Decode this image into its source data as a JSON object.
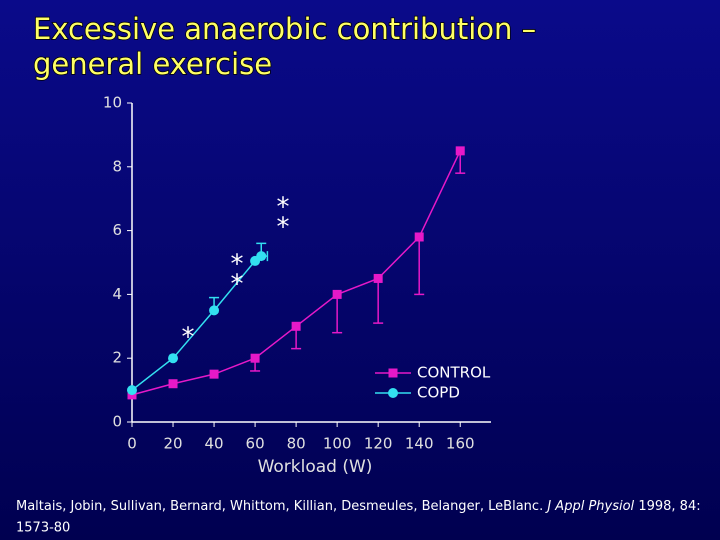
{
  "chart_data": {
    "type": "line",
    "title_lines": [
      "Excessive anaerobic contribution –",
      "general exercise"
    ],
    "x_label": "Workload (W)",
    "xlim": [
      0,
      175
    ],
    "xticks": [
      0,
      20,
      40,
      60,
      80,
      100,
      120,
      140,
      160
    ],
    "ylim": [
      0,
      10
    ],
    "yticks": [
      0,
      2,
      4,
      6,
      8,
      10
    ],
    "legend": "lower right",
    "series": [
      {
        "name": "CONTROL",
        "color": "#e619c8",
        "marker": "square",
        "x": [
          0,
          20,
          40,
          60,
          80,
          100,
          120,
          140,
          160
        ],
        "values": [
          0.85,
          1.2,
          1.5,
          2.0,
          3.0,
          4.0,
          4.5,
          5.8,
          8.5
        ],
        "errors_down": [
          null,
          null,
          null,
          0.4,
          0.7,
          1.2,
          1.4,
          1.8,
          0.7
        ]
      },
      {
        "name": "COPD",
        "color": "#33e0f0",
        "marker": "circle",
        "x": [
          0,
          20,
          40,
          60,
          63
        ],
        "values": [
          1.0,
          2.0,
          3.5,
          5.05,
          5.2
        ],
        "errors_up": [
          null,
          null,
          0.4,
          null,
          0.4
        ],
        "x_errors": [
          null,
          null,
          null,
          null,
          3
        ]
      }
    ],
    "annotations": [
      "*",
      "*",
      "*",
      "*",
      "*"
    ],
    "citation": {
      "authors": "Maltais, Jobin, Sullivan, Bernard, Whittom, Killian, Desmeules, Belanger, LeBlanc.",
      "journal": "J Appl Physiol",
      "details_1": "1998, 84:",
      "details_2": "1573-80"
    }
  }
}
